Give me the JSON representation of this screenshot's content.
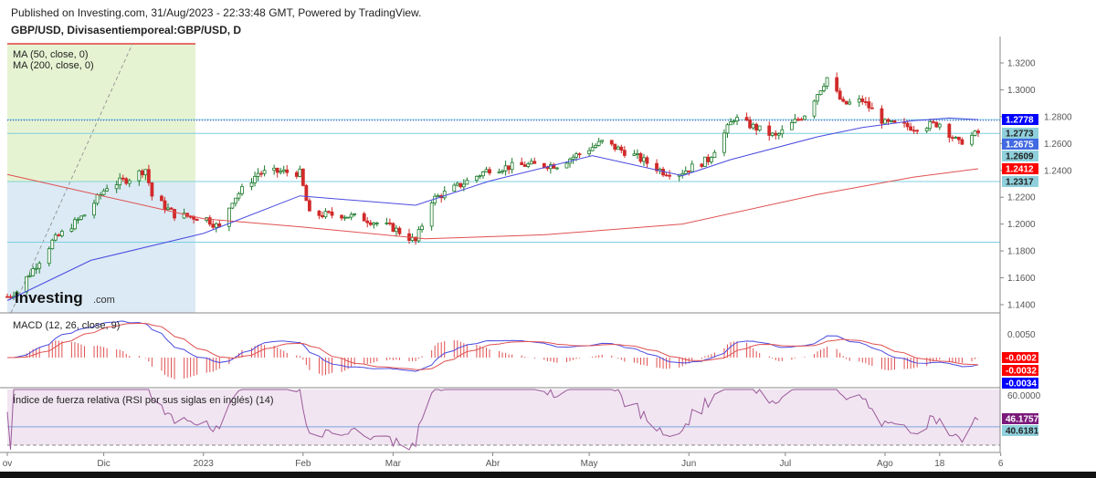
{
  "header": {
    "published": "Published on Investing.com, 31/Aug/2023 - 22:33:48 GMT, Powered by TradingView.",
    "symbol": "GBP/USD, Divisasentiemporeal:GBP/USD, D"
  },
  "logo": {
    "text": "Investing",
    "suffix": ".com"
  },
  "chart_data": [
    {
      "type": "candlestick",
      "panel": "price",
      "legend": [
        "MA (50, close, 0)",
        "MA (200, close, 0)"
      ],
      "y_ticks": [
        "1.3200",
        "1.3000",
        "1.2800",
        "1.2600",
        "1.2400",
        "1.2200",
        "1.2000",
        "1.1800",
        "1.1600",
        "1.1400"
      ],
      "ylim": [
        1.134,
        1.3245
      ],
      "x_ticks": [
        {
          "label": "ov",
          "date": "2022-11-01"
        },
        {
          "label": "Dic",
          "date": "2022-12-01"
        },
        {
          "label": "2023",
          "date": "2023-01-01"
        },
        {
          "label": "Feb",
          "date": "2023-02-01"
        },
        {
          "label": "Mar",
          "date": "2023-03-01"
        },
        {
          "label": "Abr",
          "date": "2023-04-01"
        },
        {
          "label": "May",
          "date": "2023-05-01"
        },
        {
          "label": "Jun",
          "date": "2023-06-01"
        },
        {
          "label": "Jul",
          "date": "2023-07-01"
        },
        {
          "label": "Ago",
          "date": "2023-08-01"
        },
        {
          "label": "18",
          "date": "2023-08-18"
        },
        {
          "label": "6",
          "date": "2023-09-06"
        }
      ],
      "close_path": [
        [
          "2022-11-01",
          1.146
        ],
        [
          "2022-11-04",
          1.15
        ],
        [
          "2022-11-11",
          1.173
        ],
        [
          "2022-11-15",
          1.187
        ],
        [
          "2022-11-25",
          1.207
        ],
        [
          "2022-12-02",
          1.228
        ],
        [
          "2022-12-09",
          1.234
        ],
        [
          "2022-12-14",
          1.241
        ],
        [
          "2022-12-16",
          1.221
        ],
        [
          "2022-12-23",
          1.207
        ],
        [
          "2023-01-02",
          1.204
        ],
        [
          "2023-01-06",
          1.197
        ],
        [
          "2023-01-10",
          1.218
        ],
        [
          "2023-01-18",
          1.238
        ],
        [
          "2023-01-25",
          1.239
        ],
        [
          "2023-01-31",
          1.238
        ],
        [
          "2023-02-03",
          1.207
        ],
        [
          "2023-02-13",
          1.207
        ],
        [
          "2023-02-20",
          1.204
        ],
        [
          "2023-03-01",
          1.197
        ],
        [
          "2023-03-08",
          1.187
        ],
        [
          "2023-03-13",
          1.218
        ],
        [
          "2023-03-21",
          1.228
        ],
        [
          "2023-03-31",
          1.241
        ],
        [
          "2023-04-11",
          1.244
        ],
        [
          "2023-04-21",
          1.244
        ],
        [
          "2023-05-05",
          1.261
        ],
        [
          "2023-05-15",
          1.251
        ],
        [
          "2023-05-24",
          1.239
        ],
        [
          "2023-05-29",
          1.238
        ],
        [
          "2023-06-07",
          1.248
        ],
        [
          "2023-06-15",
          1.279
        ],
        [
          "2023-06-28",
          1.265
        ],
        [
          "2023-07-07",
          1.282
        ],
        [
          "2023-07-14",
          1.309
        ],
        [
          "2023-07-19",
          1.289
        ],
        [
          "2023-07-25",
          1.292
        ],
        [
          "2023-08-01",
          1.275
        ],
        [
          "2023-08-10",
          1.272
        ],
        [
          "2023-08-18",
          1.275
        ],
        [
          "2023-08-24",
          1.26
        ],
        [
          "2023-08-25",
          1.262
        ],
        [
          "2023-08-30",
          1.268
        ]
      ],
      "ma50": [
        [
          "2022-11-01",
          1.143
        ],
        [
          "2022-11-27",
          1.173
        ],
        [
          "2023-01-01",
          1.193
        ],
        [
          "2023-01-31",
          1.221
        ],
        [
          "2023-03-08",
          1.214
        ],
        [
          "2023-03-31",
          1.232
        ],
        [
          "2023-05-02",
          1.251
        ],
        [
          "2023-05-30",
          1.236
        ],
        [
          "2023-06-14",
          1.248
        ],
        [
          "2023-07-11",
          1.265
        ],
        [
          "2023-07-25",
          1.272
        ],
        [
          "2023-08-10",
          1.277
        ],
        [
          "2023-08-21",
          1.279
        ],
        [
          "2023-08-30",
          1.2778
        ]
      ],
      "ma200": [
        [
          "2022-11-01",
          1.237
        ],
        [
          "2023-01-01",
          1.204
        ],
        [
          "2023-01-31",
          1.198
        ],
        [
          "2023-03-11",
          1.189
        ],
        [
          "2023-04-17",
          1.192
        ],
        [
          "2023-05-30",
          1.2
        ],
        [
          "2023-07-11",
          1.222
        ],
        [
          "2023-08-10",
          1.235
        ],
        [
          "2023-08-30",
          1.2412
        ]
      ],
      "horizontal_levels": [
        1.2778,
        1.2675,
        1.2317,
        1.1865
      ],
      "dotted_level": 1.2773,
      "price_tags": [
        {
          "value": "1.2778",
          "bg": "#0000ff",
          "fg": "#ffffff"
        },
        {
          "value": "1.2773",
          "bg": "#8fd0dc",
          "fg": "#222222"
        },
        {
          "value": "1.2675",
          "bg": "#4169e1",
          "fg": "#ffffff"
        },
        {
          "value": "1.2609",
          "bg": "#8fd0dc",
          "fg": "#222222"
        },
        {
          "value": "1.2412",
          "bg": "#ff0000",
          "fg": "#ffffff"
        },
        {
          "value": "1.2317",
          "bg": "#8fd0dc",
          "fg": "#222222"
        }
      ],
      "colors": {
        "up": "#1b7a2a",
        "down": "#d12a2a",
        "ma50": "#4a4ae0",
        "ma200": "#e05050",
        "level": "#7ccfe0"
      }
    },
    {
      "type": "macd",
      "title": "MACD (12, 26, close, 9)",
      "y_ticks": [
        "0.0050"
      ],
      "tags": [
        {
          "value": "-0.0002",
          "bg": "#ff0000",
          "fg": "#ffffff"
        },
        {
          "value": "-0.0032",
          "bg": "#ff0000",
          "fg": "#ffffff"
        },
        {
          "value": "-0.0034",
          "bg": "#0000ff",
          "fg": "#ffffff"
        }
      ]
    },
    {
      "type": "rsi",
      "title": "Índice de fuerza relativa (RSI por sus siglas en inglés) (14)",
      "y_ticks": [
        "60.0000"
      ],
      "ylim": [
        28,
        65
      ],
      "level": 40.6181,
      "tags": [
        {
          "value": "46.1757",
          "bg": "#7b1a7b",
          "fg": "#ffffff"
        },
        {
          "value": "40.6181",
          "bg": "#8fd0dc",
          "fg": "#222222"
        }
      ]
    }
  ]
}
